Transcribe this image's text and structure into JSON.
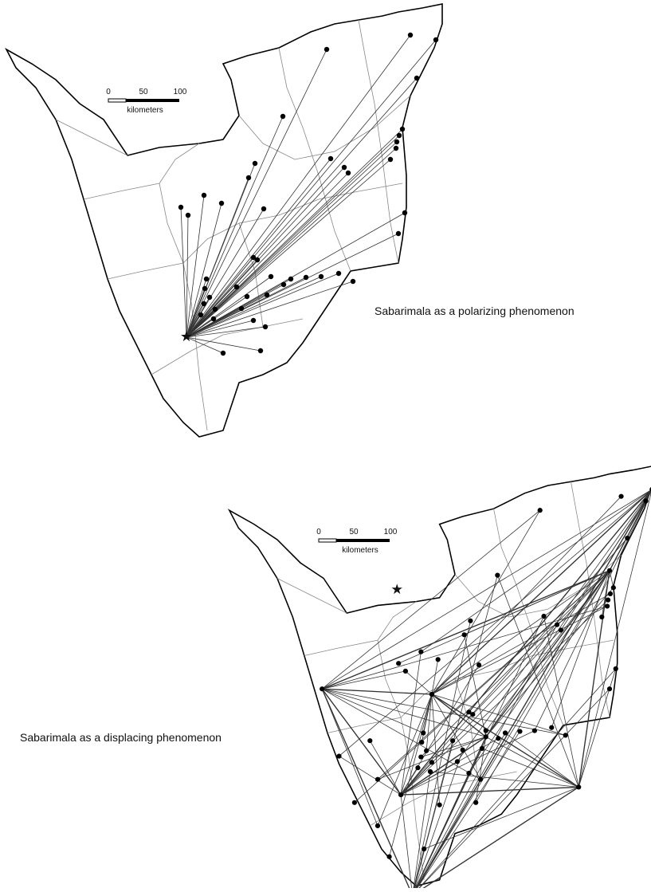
{
  "maps": [
    {
      "caption": "Sabarimala as a polarizing phenomenon",
      "scale_bar": {
        "ticks": [
          0,
          50,
          100
        ],
        "unit": "kilometers"
      }
    },
    {
      "caption": "Sabarimala as a displacing phenomenon",
      "scale_bar": {
        "ticks": [
          0,
          50,
          100
        ],
        "unit": "kilometers"
      }
    }
  ]
}
